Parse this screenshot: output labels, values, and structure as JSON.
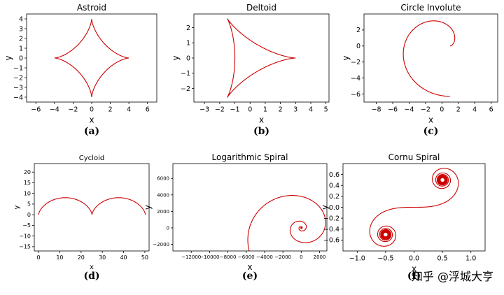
{
  "chart_data": [
    {
      "type": "line",
      "title": "Astroid",
      "xlabel": "x",
      "ylabel": "y",
      "xlim": [
        -7,
        7
      ],
      "ylim": [
        -4.5,
        4.5
      ],
      "xticks": [
        -6,
        -4,
        -2,
        0,
        2,
        4,
        6
      ],
      "yticks": [
        -4,
        -3,
        -2,
        -1,
        0,
        1,
        2,
        3,
        4
      ],
      "curve": "astroid",
      "params": {
        "a": 4
      },
      "color": "#cc0000",
      "grid": false,
      "caption": "(a)"
    },
    {
      "type": "line",
      "title": "Deltoid",
      "xlabel": "x",
      "ylabel": "y",
      "xlim": [
        -3.7,
        5.2
      ],
      "ylim": [
        -2.9,
        2.9
      ],
      "xticks": [
        -3,
        -2,
        -1,
        0,
        1,
        2,
        3,
        4,
        5
      ],
      "yticks": [
        -2,
        -1,
        0,
        1,
        2
      ],
      "curve": "deltoid",
      "params": {
        "a": 1
      },
      "color": "#cc0000",
      "grid": false,
      "caption": "(b)"
    },
    {
      "type": "line",
      "title": "Circle Involute",
      "xlabel": "x",
      "ylabel": "y",
      "xlim": [
        -9.5,
        6.8
      ],
      "ylim": [
        -7,
        4
      ],
      "xticks": [
        -8,
        -6,
        -4,
        -2,
        0,
        2,
        4,
        6
      ],
      "yticks": [
        -6,
        -4,
        -2,
        0,
        2
      ],
      "curve": "involute",
      "params": {
        "r": 1,
        "t_max": 6.28
      },
      "color": "#cc0000",
      "grid": false,
      "caption": "(c)"
    },
    {
      "type": "line",
      "title": "Cycloid",
      "xlabel": "x",
      "ylabel": "y",
      "xlim": [
        -2,
        52
      ],
      "ylim": [
        -17,
        24
      ],
      "xticks": [
        0,
        10,
        20,
        30,
        40,
        50
      ],
      "yticks": [
        -15,
        -10,
        -5,
        0,
        5,
        10,
        15,
        20
      ],
      "curve": "cycloid",
      "params": {
        "r": 4,
        "t_max": 12.566
      },
      "color": "#cc0000",
      "grid": false,
      "caption": "(d)"
    },
    {
      "type": "line",
      "title": "Logarithmic Spiral",
      "xlabel": "x",
      "ylabel": "y",
      "xlim": [
        -14000,
        2800
      ],
      "ylim": [
        -2800,
        7800
      ],
      "xticks": [
        -12000,
        -10000,
        -8000,
        -6000,
        -4000,
        -2000,
        0,
        2000
      ],
      "yticks": [
        -2000,
        0,
        2000,
        4000,
        6000
      ],
      "curve": "logspiral",
      "params": {
        "a": 1,
        "b": 0.25,
        "t_max": 37.7
      },
      "color": "#cc0000",
      "grid": false,
      "caption": "(e)"
    },
    {
      "type": "line",
      "title": "Cornu Spiral",
      "xlabel": "x",
      "ylabel": "y",
      "xlim": [
        -1.25,
        1.25
      ],
      "ylim": [
        -0.8,
        0.8
      ],
      "xticks": [
        -1.0,
        -0.5,
        0.0,
        0.5,
        1.0
      ],
      "yticks": [
        -0.6,
        -0.4,
        -0.2,
        0.0,
        0.2,
        0.4,
        0.6
      ],
      "curve": "cornu",
      "params": {
        "t_max": 8
      },
      "color": "#cc0000",
      "grid": false,
      "caption": "(f)"
    }
  ],
  "watermark": "知乎 @浮城大亨"
}
